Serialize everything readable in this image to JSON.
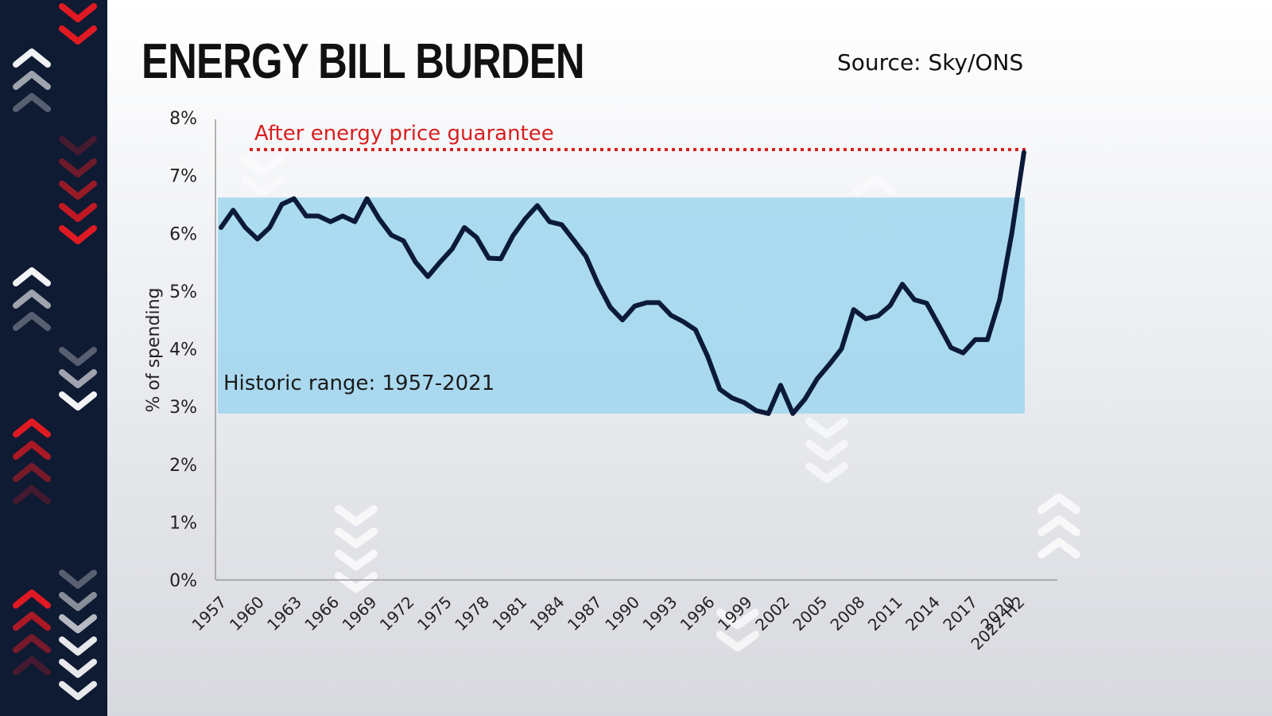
{
  "header": {
    "title": "ENERGY BILL BURDEN",
    "source": "Source: Sky/ONS"
  },
  "colors": {
    "sidebar": "#0f1a33",
    "line": "#0c1a3a",
    "band": "#9fd6ee",
    "guarantee": "#d81e1e",
    "arrow_red": "#e01a22",
    "arrow_white": "#ffffff"
  },
  "chart_data": {
    "type": "line",
    "title": "ENERGY BILL BURDEN",
    "ylabel": "% of spending",
    "xlabel": "",
    "ylim": [
      0,
      8
    ],
    "yticks": [
      "0%",
      "1%",
      "2%",
      "3%",
      "4%",
      "5%",
      "6%",
      "7%",
      "8%"
    ],
    "xticks": [
      "1957",
      "1960",
      "1963",
      "1966",
      "1969",
      "1972",
      "1975",
      "1978",
      "1981",
      "1984",
      "1987",
      "1990",
      "1993",
      "1996",
      "1999",
      "2002",
      "2005",
      "2008",
      "2011",
      "2014",
      "2017",
      "2020",
      "2022 H2"
    ],
    "grid": false,
    "series": [
      {
        "x": [
          "1957",
          "1958",
          "1959",
          "1960",
          "1961",
          "1962",
          "1963",
          "1964",
          "1965",
          "1966",
          "1967",
          "1968",
          "1969",
          "1970",
          "1971",
          "1972",
          "1973",
          "1974",
          "1975",
          "1976",
          "1977",
          "1978",
          "1979",
          "1980",
          "1981",
          "1982",
          "1983",
          "1984",
          "1985",
          "1986",
          "1987",
          "1988",
          "1989",
          "1990",
          "1991",
          "1992",
          "1993",
          "1994",
          "1995",
          "1996",
          "1997",
          "1998",
          "1999",
          "2000",
          "2001",
          "2002",
          "2003",
          "2004",
          "2005",
          "2006",
          "2007",
          "2008",
          "2009",
          "2010",
          "2011",
          "2012",
          "2013",
          "2014",
          "2015",
          "2016",
          "2017",
          "2018",
          "2019",
          "2020",
          "2021",
          "2022 H1",
          "2022 H2"
        ],
        "values": [
          6.1,
          6.4,
          6.1,
          5.9,
          6.1,
          6.5,
          6.6,
          6.3,
          6.3,
          6.2,
          6.3,
          6.2,
          6.6,
          6.25,
          5.97,
          5.87,
          5.5,
          5.25,
          5.5,
          5.73,
          6.1,
          5.93,
          5.57,
          5.56,
          5.96,
          6.25,
          6.48,
          6.2,
          6.15,
          5.88,
          5.6,
          5.12,
          4.72,
          4.5,
          4.74,
          4.8,
          4.8,
          4.58,
          4.47,
          4.33,
          3.87,
          3.3,
          3.15,
          3.07,
          2.93,
          2.88,
          3.37,
          2.88,
          3.13,
          3.48,
          3.73,
          4.0,
          4.68,
          4.52,
          4.57,
          4.75,
          5.12,
          4.85,
          4.79,
          4.41,
          4.02,
          3.93,
          4.16,
          4.16,
          4.85,
          6.0,
          7.4
        ]
      }
    ],
    "bands": [
      {
        "label": "Historic range: 1957-2021",
        "ymin": 2.88,
        "ymax": 6.62
      }
    ],
    "reference_lines": [
      {
        "label": "After energy price guarantee",
        "y": 7.45,
        "style": "dotted"
      }
    ]
  }
}
